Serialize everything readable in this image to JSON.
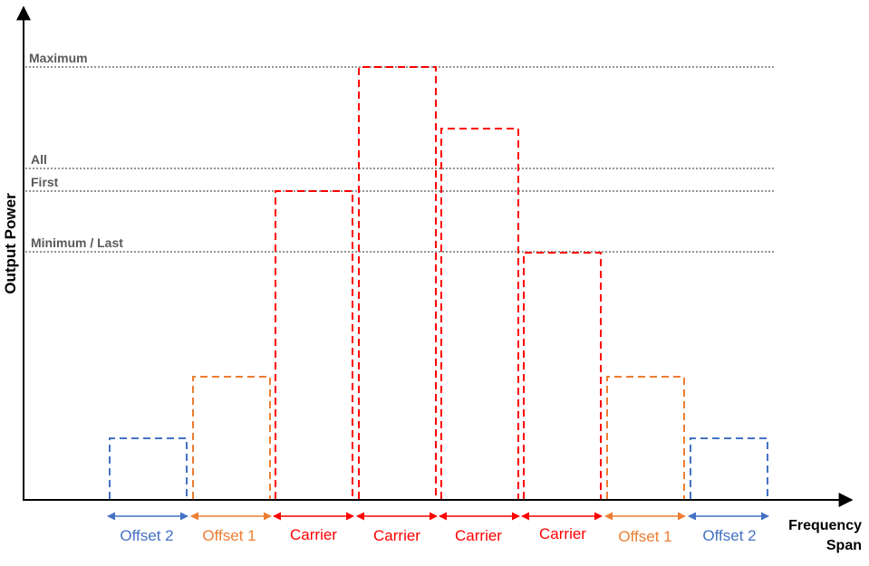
{
  "axes": {
    "y_label": "Output Power",
    "x_label_line1": "Frequency",
    "x_label_line2": "Span"
  },
  "levels": [
    {
      "key": "maximum",
      "label": "Maximum"
    },
    {
      "key": "all",
      "label": "All"
    },
    {
      "key": "first",
      "label": "First"
    },
    {
      "key": "minimum",
      "label": "Minimum / Last"
    }
  ],
  "blocks": [
    {
      "label": "Offset 2",
      "kind": "offset2"
    },
    {
      "label": "Offset 1",
      "kind": "offset1"
    },
    {
      "label": "Carrier",
      "kind": "carrier"
    },
    {
      "label": "Carrier",
      "kind": "carrier"
    },
    {
      "label": "Carrier",
      "kind": "carrier"
    },
    {
      "label": "Carrier",
      "kind": "carrier"
    },
    {
      "label": "Offset 1",
      "kind": "offset1"
    },
    {
      "label": "Offset 2",
      "kind": "offset2"
    }
  ],
  "colors": {
    "offset2": "#4472c4",
    "offset1": "#ed7d31",
    "carrier": "#ff0000",
    "level_line": "#555555",
    "level_text": "#595959",
    "axis": "#000000"
  }
}
